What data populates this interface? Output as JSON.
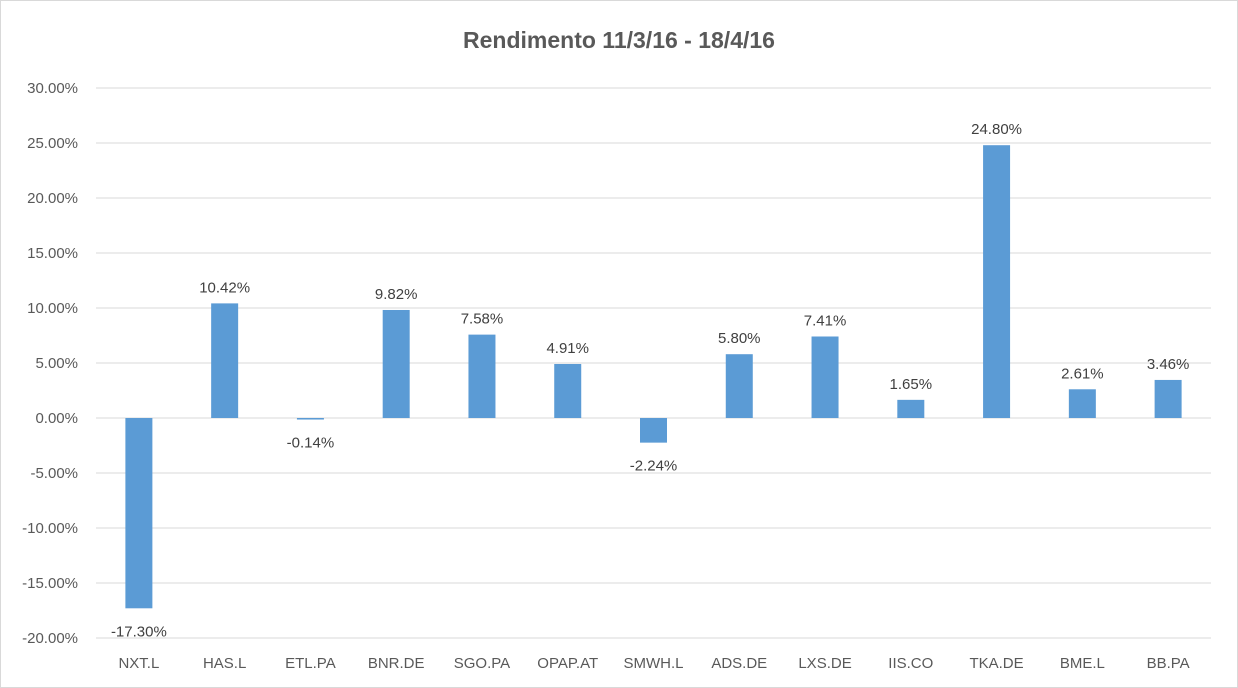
{
  "chart_data": {
    "type": "bar",
    "title": "Rendimento 11/3/16 - 18/4/16",
    "categories": [
      "NXT.L",
      "HAS.L",
      "ETL.PA",
      "BNR.DE",
      "SGO.PA",
      "OPAP.AT",
      "SMWH.L",
      "ADS.DE",
      "LXS.DE",
      "IIS.CO",
      "TKA.DE",
      "BME.L",
      "BB.PA"
    ],
    "series": [
      {
        "values": [
          -17.3,
          10.42,
          -0.14,
          9.82,
          7.58,
          4.91,
          -2.24,
          5.8,
          7.41,
          1.65,
          24.8,
          2.61,
          3.46
        ]
      }
    ],
    "data_labels": [
      "-17.30%",
      "10.42%",
      "-0.14%",
      "9.82%",
      "7.58%",
      "4.91%",
      "-2.24%",
      "5.80%",
      "7.41%",
      "1.65%",
      "24.80%",
      "2.61%",
      "3.46%"
    ],
    "y_ticks": [
      30,
      25,
      20,
      15,
      10,
      5,
      0,
      -5,
      -10,
      -15,
      -20
    ],
    "y_tick_labels": [
      "30.00%",
      "25.00%",
      "20.00%",
      "15.00%",
      "10.00%",
      "5.00%",
      "0.00%",
      "-5.00%",
      "-10.00%",
      "-15.00%",
      "-20.00%"
    ],
    "ylim": [
      -20,
      30
    ],
    "grid": true,
    "legend": "none",
    "bar_color": "#5b9bd5",
    "grid_color": "#d9d9d9"
  }
}
